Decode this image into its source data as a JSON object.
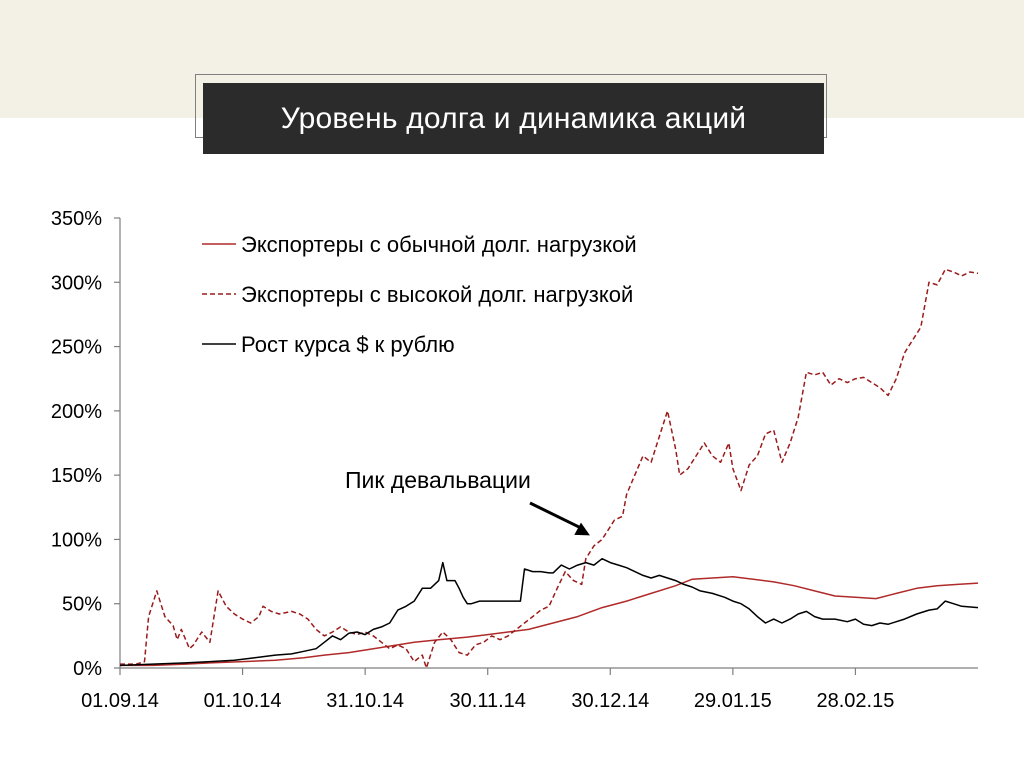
{
  "slide": {
    "title": "Уровень долга и динамика акций"
  },
  "chart_data": {
    "type": "line",
    "title": "",
    "xlabel": "",
    "ylabel": "",
    "x_ticks": [
      "01.09.14",
      "01.10.14",
      "31.10.14",
      "30.11.14",
      "30.12.14",
      "29.01.15",
      "28.02.15"
    ],
    "y_ticks": [
      "0%",
      "50%",
      "100%",
      "150%",
      "200%",
      "250%",
      "300%",
      "350%"
    ],
    "y_tick_values": [
      0,
      50,
      100,
      150,
      200,
      250,
      300,
      350
    ],
    "xlim": [
      0,
      210
    ],
    "ylim": [
      0,
      350
    ],
    "grid": false,
    "legend_position": "top-left",
    "series": [
      {
        "name": "Экспортеры с обычной долг. нагрузкой",
        "color": "#b02a2a",
        "style": "solid",
        "points": [
          [
            0,
            2
          ],
          [
            8,
            2
          ],
          [
            16,
            3
          ],
          [
            22,
            4
          ],
          [
            30,
            5
          ],
          [
            38,
            6
          ],
          [
            45,
            8
          ],
          [
            50,
            10
          ],
          [
            56,
            12
          ],
          [
            62,
            15
          ],
          [
            68,
            18
          ],
          [
            72,
            20
          ],
          [
            78,
            22
          ],
          [
            85,
            24
          ],
          [
            90,
            26
          ],
          [
            95,
            28
          ],
          [
            100,
            30
          ],
          [
            106,
            35
          ],
          [
            112,
            40
          ],
          [
            118,
            47
          ],
          [
            124,
            52
          ],
          [
            130,
            58
          ],
          [
            136,
            64
          ],
          [
            140,
            69
          ],
          [
            145,
            70
          ],
          [
            150,
            71
          ],
          [
            155,
            69
          ],
          [
            160,
            67
          ],
          [
            165,
            64
          ],
          [
            170,
            60
          ],
          [
            175,
            56
          ],
          [
            180,
            55
          ],
          [
            185,
            54
          ],
          [
            190,
            58
          ],
          [
            195,
            62
          ],
          [
            200,
            64
          ],
          [
            205,
            65
          ],
          [
            210,
            66
          ]
        ]
      },
      {
        "name": "Экспортеры с высокой долг. нагрузкой",
        "color": "#9b1b1b",
        "style": "dashed",
        "points": [
          [
            0,
            3
          ],
          [
            4,
            3
          ],
          [
            6,
            5
          ],
          [
            7,
            40
          ],
          [
            9,
            60
          ],
          [
            11,
            40
          ],
          [
            13,
            33
          ],
          [
            14,
            22
          ],
          [
            15,
            30
          ],
          [
            17,
            15
          ],
          [
            18,
            18
          ],
          [
            20,
            28
          ],
          [
            22,
            20
          ],
          [
            24,
            60
          ],
          [
            26,
            48
          ],
          [
            28,
            42
          ],
          [
            30,
            38
          ],
          [
            32,
            35
          ],
          [
            34,
            40
          ],
          [
            35,
            48
          ],
          [
            37,
            44
          ],
          [
            39,
            42
          ],
          [
            42,
            44
          ],
          [
            44,
            42
          ],
          [
            46,
            38
          ],
          [
            48,
            30
          ],
          [
            50,
            25
          ],
          [
            52,
            28
          ],
          [
            54,
            32
          ],
          [
            56,
            28
          ],
          [
            58,
            26
          ],
          [
            60,
            28
          ],
          [
            62,
            25
          ],
          [
            64,
            20
          ],
          [
            66,
            15
          ],
          [
            68,
            18
          ],
          [
            70,
            15
          ],
          [
            72,
            5
          ],
          [
            74,
            10
          ],
          [
            75,
            0
          ],
          [
            77,
            20
          ],
          [
            79,
            28
          ],
          [
            81,
            22
          ],
          [
            83,
            12
          ],
          [
            85,
            10
          ],
          [
            87,
            18
          ],
          [
            89,
            20
          ],
          [
            91,
            25
          ],
          [
            93,
            22
          ],
          [
            95,
            25
          ],
          [
            97,
            30
          ],
          [
            99,
            35
          ],
          [
            101,
            40
          ],
          [
            103,
            45
          ],
          [
            105,
            48
          ],
          [
            107,
            62
          ],
          [
            109,
            75
          ],
          [
            111,
            68
          ],
          [
            113,
            65
          ],
          [
            114,
            85
          ],
          [
            116,
            95
          ],
          [
            118,
            100
          ],
          [
            120,
            110
          ],
          [
            121,
            115
          ],
          [
            123,
            118
          ],
          [
            124,
            135
          ],
          [
            126,
            150
          ],
          [
            128,
            165
          ],
          [
            130,
            160
          ],
          [
            132,
            180
          ],
          [
            134,
            200
          ],
          [
            136,
            170
          ],
          [
            137,
            150
          ],
          [
            139,
            155
          ],
          [
            141,
            165
          ],
          [
            143,
            175
          ],
          [
            145,
            165
          ],
          [
            147,
            160
          ],
          [
            149,
            175
          ],
          [
            150,
            155
          ],
          [
            152,
            138
          ],
          [
            154,
            158
          ],
          [
            156,
            165
          ],
          [
            158,
            182
          ],
          [
            160,
            185
          ],
          [
            162,
            160
          ],
          [
            164,
            175
          ],
          [
            166,
            195
          ],
          [
            168,
            230
          ],
          [
            170,
            228
          ],
          [
            172,
            230
          ],
          [
            174,
            220
          ],
          [
            176,
            225
          ],
          [
            178,
            222
          ],
          [
            180,
            225
          ],
          [
            182,
            226
          ],
          [
            184,
            222
          ],
          [
            186,
            218
          ],
          [
            188,
            212
          ],
          [
            190,
            225
          ],
          [
            192,
            245
          ],
          [
            194,
            255
          ],
          [
            196,
            265
          ],
          [
            198,
            300
          ],
          [
            200,
            298
          ],
          [
            202,
            310
          ],
          [
            204,
            308
          ],
          [
            206,
            305
          ],
          [
            208,
            308
          ],
          [
            210,
            307
          ]
        ]
      },
      {
        "name": "Рост курса $ к рублю",
        "color": "#000000",
        "style": "solid",
        "points": [
          [
            0,
            2
          ],
          [
            8,
            3
          ],
          [
            16,
            4
          ],
          [
            22,
            5
          ],
          [
            28,
            6
          ],
          [
            33,
            8
          ],
          [
            38,
            10
          ],
          [
            42,
            11
          ],
          [
            45,
            13
          ],
          [
            48,
            15
          ],
          [
            50,
            20
          ],
          [
            52,
            25
          ],
          [
            54,
            22
          ],
          [
            56,
            27
          ],
          [
            58,
            28
          ],
          [
            60,
            26
          ],
          [
            62,
            30
          ],
          [
            64,
            32
          ],
          [
            66,
            35
          ],
          [
            68,
            45
          ],
          [
            70,
            48
          ],
          [
            72,
            52
          ],
          [
            74,
            62
          ],
          [
            76,
            62
          ],
          [
            78,
            68
          ],
          [
            79,
            82
          ],
          [
            80,
            68
          ],
          [
            82,
            68
          ],
          [
            83,
            62
          ],
          [
            84,
            55
          ],
          [
            85,
            50
          ],
          [
            86,
            50
          ],
          [
            88,
            52
          ],
          [
            90,
            52
          ],
          [
            94,
            52
          ],
          [
            96,
            52
          ],
          [
            98,
            52
          ],
          [
            99,
            77
          ],
          [
            101,
            75
          ],
          [
            103,
            75
          ],
          [
            105,
            74
          ],
          [
            106,
            74
          ],
          [
            108,
            80
          ],
          [
            110,
            77
          ],
          [
            112,
            80
          ],
          [
            114,
            82
          ],
          [
            116,
            80
          ],
          [
            118,
            85
          ],
          [
            120,
            82
          ],
          [
            122,
            80
          ],
          [
            124,
            78
          ],
          [
            126,
            75
          ],
          [
            128,
            72
          ],
          [
            130,
            70
          ],
          [
            132,
            72
          ],
          [
            134,
            70
          ],
          [
            136,
            68
          ],
          [
            138,
            65
          ],
          [
            140,
            63
          ],
          [
            142,
            60
          ],
          [
            145,
            58
          ],
          [
            148,
            55
          ],
          [
            150,
            52
          ],
          [
            152,
            50
          ],
          [
            154,
            46
          ],
          [
            156,
            40
          ],
          [
            158,
            35
          ],
          [
            160,
            38
          ],
          [
            162,
            35
          ],
          [
            164,
            38
          ],
          [
            166,
            42
          ],
          [
            168,
            44
          ],
          [
            170,
            40
          ],
          [
            172,
            38
          ],
          [
            175,
            38
          ],
          [
            178,
            36
          ],
          [
            180,
            38
          ],
          [
            182,
            34
          ],
          [
            184,
            33
          ],
          [
            186,
            35
          ],
          [
            188,
            34
          ],
          [
            190,
            36
          ],
          [
            192,
            38
          ],
          [
            195,
            42
          ],
          [
            198,
            45
          ],
          [
            200,
            46
          ],
          [
            202,
            52
          ],
          [
            204,
            50
          ],
          [
            206,
            48
          ],
          [
            210,
            47
          ]
        ]
      }
    ],
    "annotations": [
      {
        "text": "Пик девальвации",
        "target_x": 116,
        "target_y": 100
      }
    ]
  }
}
